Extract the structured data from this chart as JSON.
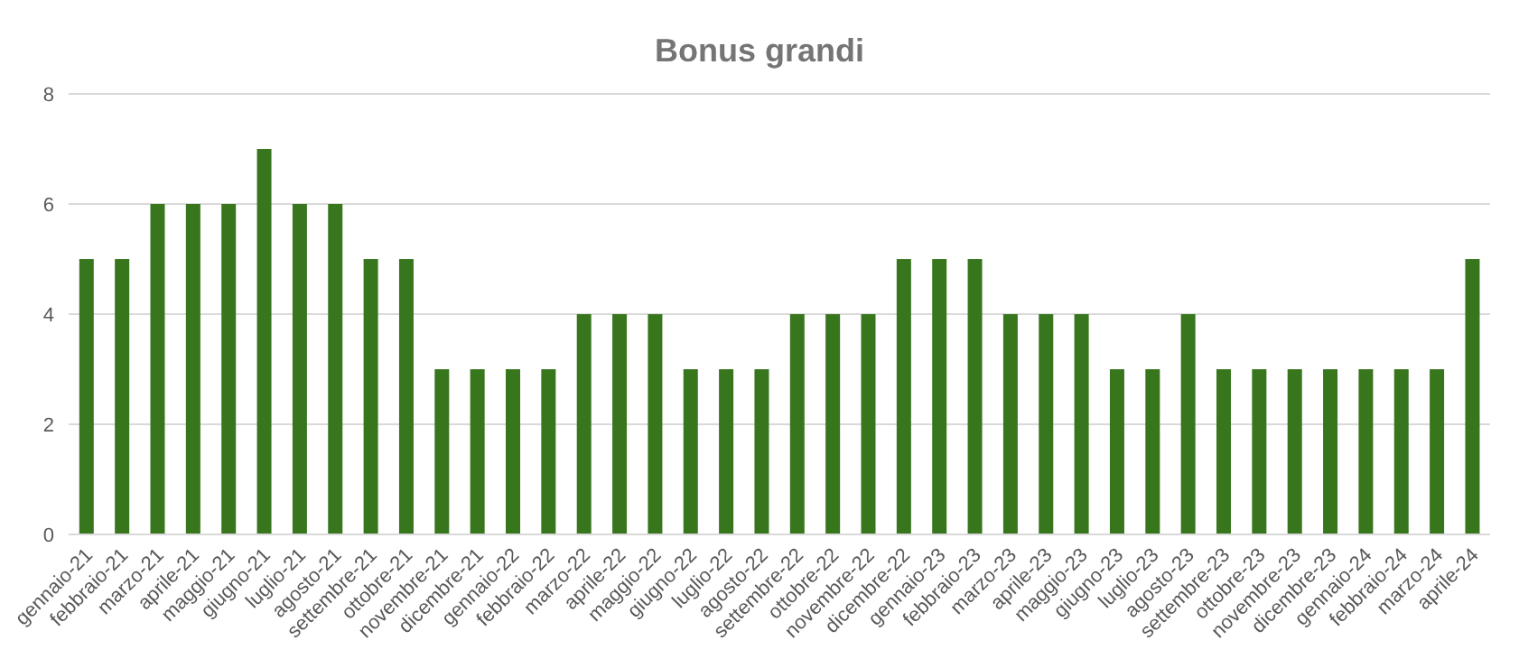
{
  "chart_data": {
    "type": "bar",
    "title": "Bonus grandi",
    "categories": [
      "gennaio-21",
      "febbraio-21",
      "marzo-21",
      "aprile-21",
      "maggio-21",
      "giugno-21",
      "luglio-21",
      "agosto-21",
      "settembre-21",
      "ottobre-21",
      "novembre-21",
      "dicembre-21",
      "gennaio-22",
      "febbraio-22",
      "marzo-22",
      "aprile-22",
      "maggio-22",
      "giugno-22",
      "luglio-22",
      "agosto-22",
      "settembre-22",
      "ottobre-22",
      "novembre-22",
      "dicembre-22",
      "gennaio-23",
      "febbraio-23",
      "marzo-23",
      "aprile-23",
      "maggio-23",
      "giugno-23",
      "luglio-23",
      "agosto-23",
      "settembre-23",
      "ottobre-23",
      "novembre-23",
      "dicembre-23",
      "gennaio-24",
      "febbraio-24",
      "marzo-24",
      "aprile-24"
    ],
    "values": [
      5,
      5,
      6,
      6,
      6,
      7,
      6,
      6,
      5,
      5,
      3,
      3,
      3,
      3,
      4,
      4,
      4,
      3,
      3,
      3,
      4,
      4,
      4,
      5,
      5,
      5,
      4,
      4,
      4,
      3,
      3,
      4,
      3,
      3,
      3,
      3,
      3,
      3,
      3,
      5
    ],
    "color": "#38761d",
    "ylim": [
      0,
      8
    ],
    "yticks": [
      0,
      2,
      4,
      6,
      8
    ],
    "grid": "y"
  }
}
